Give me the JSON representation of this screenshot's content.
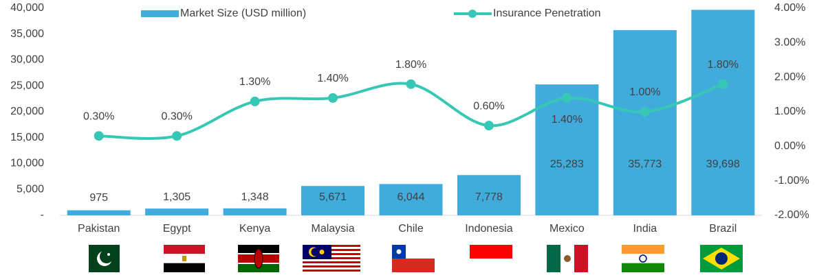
{
  "chart_data": {
    "type": "bar",
    "categories": [
      "Pakistan",
      "Egypt",
      "Kenya",
      "Malaysia",
      "Chile",
      "Indonesia",
      "Mexico",
      "India",
      "Brazil"
    ],
    "series": [
      {
        "name": "Market Size (USD million)",
        "type": "bar",
        "color": "#41acdc",
        "values": [
          975,
          1305,
          1348,
          5671,
          6044,
          7778,
          25283,
          35773,
          39698
        ],
        "value_labels": [
          "975",
          "1,305",
          "1,348",
          "5,671",
          "6,044",
          "7,778",
          "25,283",
          "35,773",
          "39,698"
        ]
      },
      {
        "name": "Insurance Penetration",
        "type": "line",
        "axis": "y2",
        "color": "#36c8b4",
        "values": [
          0.3,
          0.3,
          1.3,
          1.4,
          1.8,
          0.6,
          1.4,
          1.0,
          1.8
        ],
        "value_labels": [
          "0.30%",
          "0.30%",
          "1.30%",
          "1.40%",
          "1.80%",
          "0.60%",
          "1.40%",
          "1.00%",
          "1.80%"
        ]
      }
    ],
    "ylim": [
      0,
      40000
    ],
    "yticks": [
      {
        "value": 0,
        "label": "-"
      },
      {
        "value": 5000,
        "label": "5,000"
      },
      {
        "value": 10000,
        "label": "10,000"
      },
      {
        "value": 15000,
        "label": "15,000"
      },
      {
        "value": 20000,
        "label": "20,000"
      },
      {
        "value": 25000,
        "label": "25,000"
      },
      {
        "value": 30000,
        "label": "30,000"
      },
      {
        "value": 35000,
        "label": "35,000"
      },
      {
        "value": 40000,
        "label": "40,000"
      }
    ],
    "y2lim": [
      -2,
      4
    ],
    "y2ticks": [
      {
        "value": -2,
        "label": "-2.00%"
      },
      {
        "value": -1,
        "label": "-1.00%"
      },
      {
        "value": 0,
        "label": "0.00%"
      },
      {
        "value": 1,
        "label": "1.00%"
      },
      {
        "value": 2,
        "label": "2.00%"
      },
      {
        "value": 3,
        "label": "3.00%"
      },
      {
        "value": 4,
        "label": "4.00%"
      }
    ],
    "legend": "top"
  }
}
